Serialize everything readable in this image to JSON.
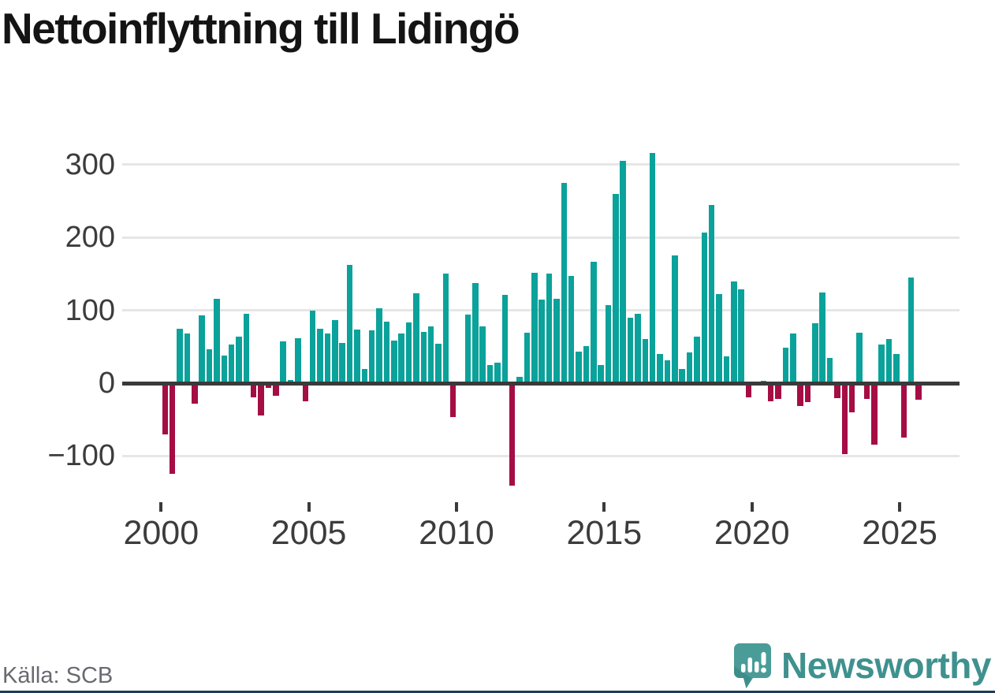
{
  "header": {
    "title": "Nettoinflyttning till Lidingö"
  },
  "footer": {
    "source": "Källa: SCB",
    "brand_name": "Newsworthy"
  },
  "branding": {
    "wordmark_color": "#3f918e",
    "icon_color": "#4a9c98",
    "icon_tail_color": "#3d8e8a"
  },
  "chart_data": {
    "type": "bar",
    "title": "Nettoinflyttning till Lidingö",
    "frequency": "quarterly",
    "start_year": 2000,
    "start_quarter": 1,
    "values": [
      -70,
      -125,
      75,
      68,
      -28,
      93,
      47,
      116,
      38,
      53,
      64,
      95,
      -20,
      -44,
      -6,
      -17,
      57,
      4,
      62,
      -25,
      100,
      75,
      68,
      87,
      55,
      162,
      74,
      20,
      73,
      103,
      85,
      58,
      68,
      83,
      123,
      70,
      78,
      54,
      150,
      -47,
      0,
      94,
      137,
      78,
      25,
      28,
      121,
      -141,
      9,
      69,
      152,
      115,
      150,
      116,
      275,
      147,
      43,
      51,
      167,
      25,
      107,
      260,
      305,
      90,
      95,
      61,
      316,
      40,
      31,
      175,
      20,
      42,
      64,
      207,
      245,
      122,
      37,
      140,
      129,
      -20,
      0,
      3,
      -25,
      -22,
      49,
      68,
      -31,
      -26,
      82,
      125,
      35,
      -21,
      -97,
      -40,
      69,
      -22,
      -85,
      53,
      61,
      40,
      -75,
      145,
      -23
    ],
    "x_tick_years": [
      2000,
      2005,
      2010,
      2015,
      2020,
      2025
    ],
    "x_tick_labels": [
      "2000",
      "2005",
      "2010",
      "2015",
      "2020",
      "2025"
    ],
    "y_ticks": [
      300,
      200,
      100,
      0,
      -100
    ],
    "y_tick_labels": [
      "300",
      "200",
      "100",
      "0",
      "−100"
    ],
    "ylim": [
      -150,
      330
    ],
    "grid": true,
    "legend": false,
    "positive_color": "#0aa29a",
    "negative_color": "#a50d45",
    "axis_color": "#3a3a3a",
    "gridline_color": "#e6e6e6"
  }
}
